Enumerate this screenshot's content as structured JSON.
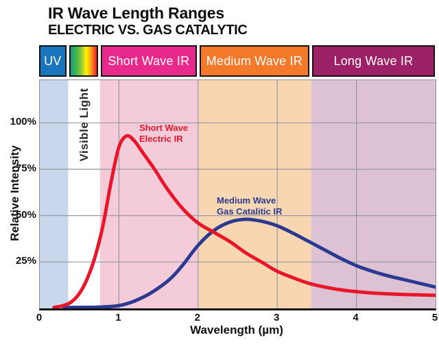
{
  "title": {
    "line1": "IR Wave Length Ranges",
    "line2": "ELECTRIC VS. GAS CATALYTIC"
  },
  "header": {
    "segments": [
      {
        "label": "UV",
        "start": 0,
        "end": 0.36,
        "color": "#1b75bc",
        "type": "solid"
      },
      {
        "label": "",
        "start": 0.36,
        "end": 0.76,
        "color": "rainbow",
        "type": "rainbow"
      },
      {
        "label": "Short Wave IR",
        "start": 0.76,
        "end": 2.01,
        "color": "#e92a8c",
        "type": "solid"
      },
      {
        "label": "Medium Wave IR",
        "start": 2.01,
        "end": 3.43,
        "color": "#f4792a",
        "type": "solid"
      },
      {
        "label": "Long Wave IR",
        "start": 3.43,
        "end": 5,
        "color": "#9c2166",
        "type": "solid"
      }
    ],
    "rainbow_colors": [
      "#1c9b88",
      "#3ab54a",
      "#8dc63f",
      "#fff200",
      "#f7941d",
      "#ed1c24"
    ]
  },
  "chart_data": {
    "type": "line",
    "xlabel": "Wavelength (µm)",
    "ylabel": "Relative Intensity",
    "xlim": [
      0,
      5
    ],
    "ylim_percent": [
      0,
      123
    ],
    "grid": true,
    "x_ticks": [
      "0",
      "1",
      "2",
      "3",
      "4",
      "5"
    ],
    "y_ticks": [
      {
        "value": 25,
        "label": "25%"
      },
      {
        "value": 50,
        "label": "50%"
      },
      {
        "value": 75,
        "label": "75%"
      },
      {
        "value": 100,
        "label": "100%"
      }
    ],
    "visible_light_label": "Visible Light",
    "bands": [
      {
        "name": "uv",
        "start": 0,
        "end": 0.36,
        "color": "#c9d7ec"
      },
      {
        "name": "visible-light",
        "start": 0.36,
        "end": 0.76,
        "color": "#ffffff"
      },
      {
        "name": "short-wave-ir",
        "start": 0.76,
        "end": 2.01,
        "color": "#f4ccd9"
      },
      {
        "name": "medium-wave-ir",
        "start": 2.01,
        "end": 3.43,
        "color": "#f8d6b2"
      },
      {
        "name": "long-wave-ir",
        "start": 3.43,
        "end": 5,
        "color": "#dcc2d3"
      }
    ],
    "series": [
      {
        "name": "Short Wave Electric IR",
        "color": "#e8152b",
        "label_line1": "Short Wave",
        "label_line2": "Electric IR",
        "x": [
          0.18,
          0.3,
          0.4,
          0.5,
          0.6,
          0.7,
          0.8,
          0.9,
          1.0,
          1.1,
          1.2,
          1.3,
          1.45,
          1.6,
          1.8,
          2.0,
          2.2,
          2.4,
          2.6,
          2.8,
          3.0,
          3.2,
          3.4,
          3.6,
          3.8,
          4.0,
          4.3,
          4.6,
          5.0
        ],
        "y_percent": [
          0.5,
          1.5,
          3.5,
          8,
          16,
          28,
          45,
          68,
          87,
          93,
          90,
          84,
          75,
          65,
          54,
          46,
          41,
          36,
          30,
          25,
          20,
          16.5,
          13.5,
          11.5,
          10,
          9,
          8,
          7.5,
          7
        ]
      },
      {
        "name": "Medium Wave Gas Catalitic IR",
        "color": "#2b3a90",
        "label_line1": "Medium Wave",
        "label_line2": "Gas Catalitic IR",
        "x": [
          0.3,
          0.7,
          0.9,
          1.0,
          1.1,
          1.2,
          1.35,
          1.5,
          1.65,
          1.8,
          2.0,
          2.2,
          2.4,
          2.6,
          2.8,
          3.0,
          3.2,
          3.4,
          3.6,
          3.8,
          4.0,
          4.2,
          4.4,
          4.6,
          4.8,
          5.0
        ],
        "y_percent": [
          0.5,
          0.6,
          1,
          1.5,
          2.5,
          4,
          7,
          11,
          16,
          23,
          34,
          42,
          46.5,
          48,
          47,
          44.5,
          40.5,
          36,
          31.5,
          27,
          23,
          20,
          17.5,
          15.5,
          13.5,
          11.5
        ]
      }
    ]
  },
  "style_colors": {
    "gridline": "#98989e",
    "axis": "#141414",
    "tick_text": "#121212"
  }
}
